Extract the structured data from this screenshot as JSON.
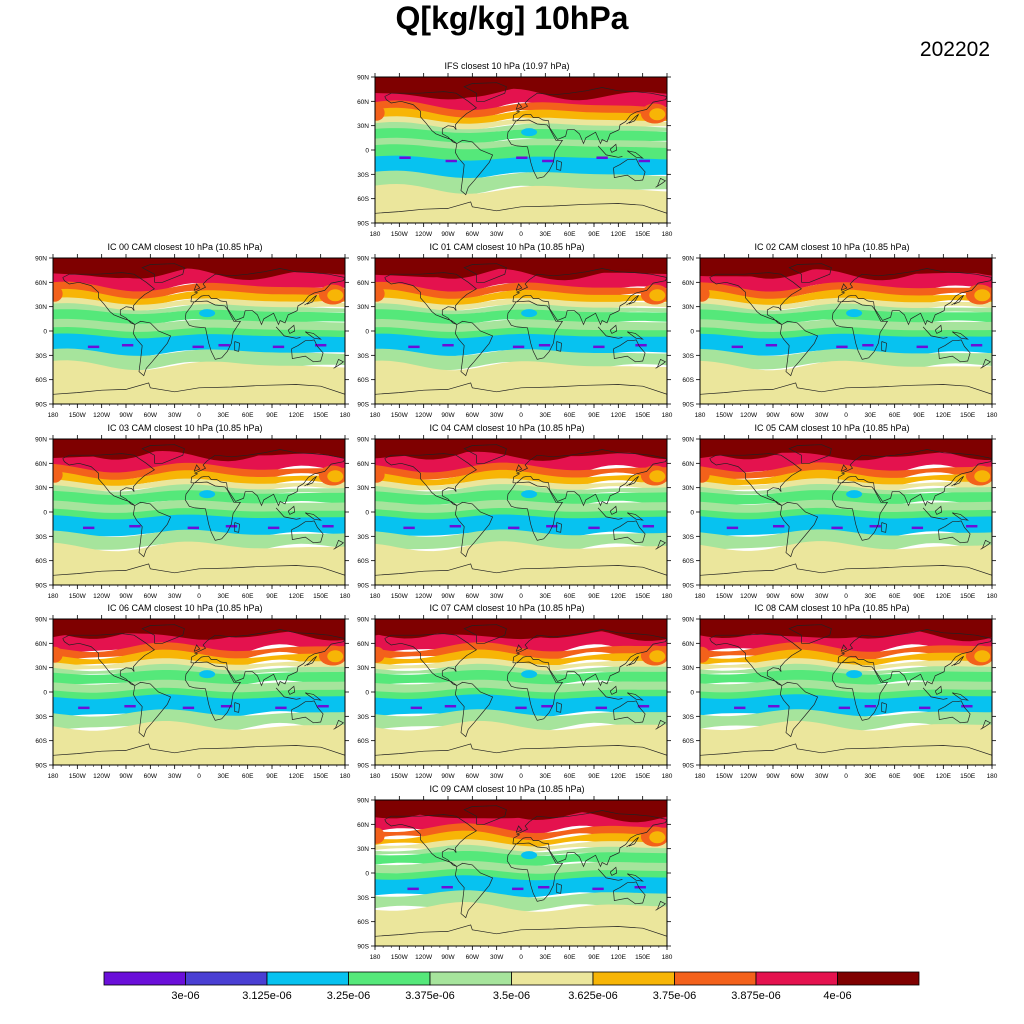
{
  "title": "Q[kg/kg] 10hPa",
  "date": "202202",
  "panels": [
    {
      "title": "IFS closest 10 hPa (10.97 hPa)",
      "kind": "ifs"
    },
    {
      "title": "IC 00 CAM closest 10 hPa (10.85 hPa)",
      "kind": "cam"
    },
    {
      "title": "IC 01 CAM closest 10 hPa (10.85 hPa)",
      "kind": "cam"
    },
    {
      "title": "IC 02 CAM closest 10 hPa (10.85 hPa)",
      "kind": "cam"
    },
    {
      "title": "IC 03 CAM closest 10 hPa (10.85 hPa)",
      "kind": "cam"
    },
    {
      "title": "IC 04 CAM closest 10 hPa (10.85 hPa)",
      "kind": "cam"
    },
    {
      "title": "IC 05 CAM closest 10 hPa (10.85 hPa)",
      "kind": "cam"
    },
    {
      "title": "IC 06 CAM closest 10 hPa (10.85 hPa)",
      "kind": "cam"
    },
    {
      "title": "IC 07 CAM closest 10 hPa (10.85 hPa)",
      "kind": "cam"
    },
    {
      "title": "IC 08 CAM closest 10 hPa (10.85 hPa)",
      "kind": "cam"
    },
    {
      "title": "IC 09 CAM closest 10 hPa (10.85 hPa)",
      "kind": "cam"
    }
  ],
  "lon_ticks": [
    "180",
    "150W",
    "120W",
    "90W",
    "60W",
    "30W",
    "0",
    "30E",
    "60E",
    "90E",
    "120E",
    "150E",
    "180"
  ],
  "lat_ticks": [
    "90N",
    "60N",
    "30N",
    "0",
    "30S",
    "60S",
    "90S"
  ],
  "colorbar": {
    "colors": [
      "#6a0fd9",
      "#4a3fd3",
      "#07c2f0",
      "#55e87a",
      "#a6e49c",
      "#ebe69c",
      "#f7b506",
      "#f3611b",
      "#e4124e",
      "#7f0000"
    ],
    "labels": [
      "3e-06",
      "3.125e-06",
      "3.25e-06",
      "3.375e-06",
      "3.5e-06",
      "3.625e-06",
      "3.75e-06",
      "3.875e-06",
      "4e-06"
    ]
  }
}
